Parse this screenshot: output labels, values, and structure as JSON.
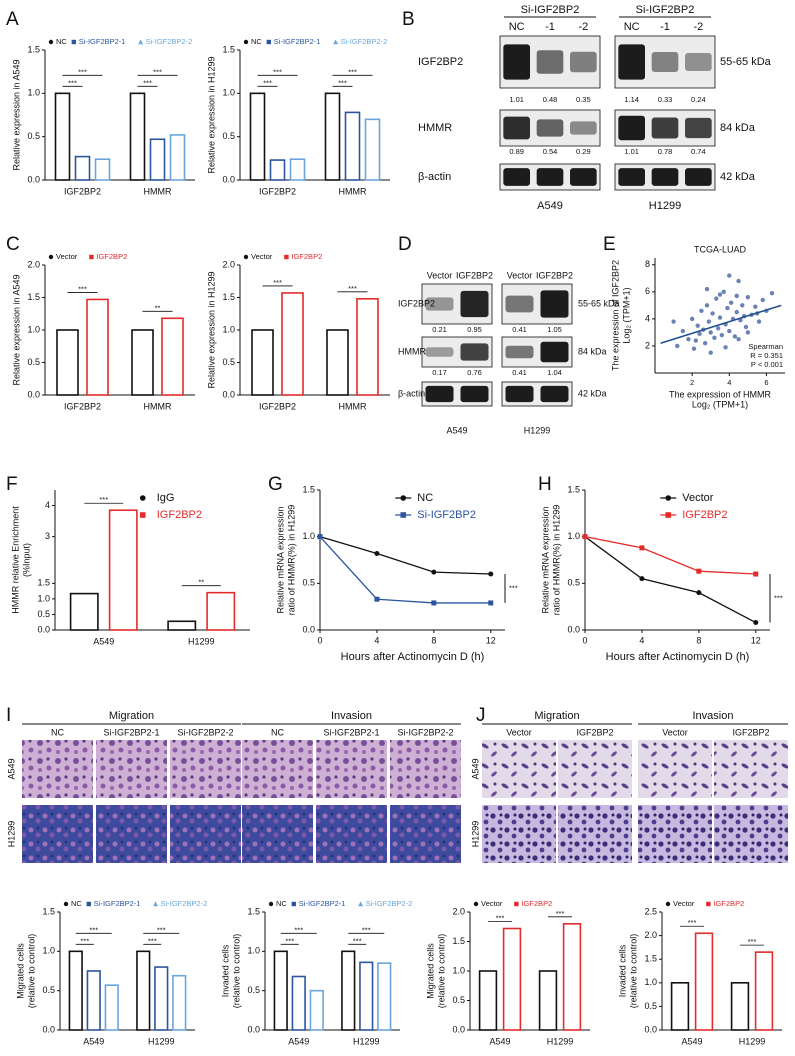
{
  "panel_labels": [
    "A",
    "B",
    "C",
    "D",
    "E",
    "F",
    "G",
    "H",
    "I",
    "J"
  ],
  "chart_data": [
    {
      "type": "bar",
      "ylabel": "Relative expression in A549",
      "categories": [
        "IGF2BP2",
        "HMMR"
      ],
      "series": [
        {
          "name": "NC",
          "color": "#111111",
          "values": [
            1.0,
            1.0
          ]
        },
        {
          "name": "Si-IGF2BP2-1",
          "color": "#2c55a0",
          "values": [
            0.27,
            0.47
          ]
        },
        {
          "name": "Si-IGF2BP2-2",
          "color": "#6aa6dc",
          "values": [
            0.24,
            0.52
          ]
        }
      ],
      "ylim": [
        0,
        1.5
      ],
      "yticks": [
        {
          "value": 0,
          "label": "0.0"
        },
        0.5,
        {
          "value": 1,
          "label": "1.0"
        },
        1.5
      ],
      "significance": [
        "***",
        "***",
        "***",
        "***"
      ],
      "legend": "top"
    },
    {
      "type": "bar",
      "ylabel": "Relative expression in H1299",
      "categories": [
        "IGF2BP2",
        "HMMR"
      ],
      "series": [
        {
          "name": "NC",
          "color": "#111111",
          "values": [
            1.0,
            1.0
          ]
        },
        {
          "name": "Si-IGF2BP2-1",
          "color": "#2c55a0",
          "values": [
            0.23,
            0.78
          ]
        },
        {
          "name": "Si-IGF2BP2-2",
          "color": "#6aa6dc",
          "values": [
            0.24,
            0.7
          ]
        }
      ],
      "ylim": [
        0,
        1.5
      ],
      "yticks": [
        {
          "value": 0,
          "label": "0.0"
        },
        0.5,
        {
          "value": 1,
          "label": "1.0"
        },
        1.5
      ],
      "significance": [
        "***",
        "***",
        "***",
        "***"
      ],
      "legend": "top"
    },
    {
      "type": "bar",
      "ylabel": "Relative expression in A549",
      "categories": [
        "IGF2BP2",
        "HMMR"
      ],
      "series": [
        {
          "name": "Vector",
          "color": "#111111",
          "values": [
            1.0,
            1.0
          ]
        },
        {
          "name": "IGF2BP2",
          "color": "#e32b2b",
          "values": [
            1.47,
            1.18
          ]
        }
      ],
      "ylim": [
        0,
        2
      ],
      "yticks": [
        {
          "value": 0,
          "label": "0.0"
        },
        0.5,
        {
          "value": 1,
          "label": "1.0"
        },
        1.5,
        {
          "value": 2,
          "label": "2.0"
        }
      ],
      "significance": [
        "***",
        "**"
      ],
      "legend": "top"
    },
    {
      "type": "bar",
      "ylabel": "Relative expression in H1299",
      "categories": [
        "IGF2BP2",
        "HMMR"
      ],
      "series": [
        {
          "name": "Vector",
          "color": "#111111",
          "values": [
            1.0,
            1.0
          ]
        },
        {
          "name": "IGF2BP2",
          "color": "#e32b2b",
          "values": [
            1.57,
            1.48
          ]
        }
      ],
      "ylim": [
        0,
        2
      ],
      "yticks": [
        {
          "value": 0,
          "label": "0.0"
        },
        0.5,
        {
          "value": 1,
          "label": "1.0"
        },
        1.5,
        {
          "value": 2,
          "label": "2.0"
        }
      ],
      "significance": [
        "***",
        "***"
      ],
      "legend": "top"
    },
    {
      "type": "scatter",
      "title": "TCGA-LUAD",
      "xlabel": [
        "The expression of HMMR",
        "Log₂ (TPM+1)"
      ],
      "ylabel": [
        "The expression of IGF2BP2",
        "Log₂ (TPM+1)"
      ],
      "color": "#3a5a9a",
      "x": [
        1.2,
        1.5,
        1.8,
        2.0,
        2.1,
        2.3,
        2.4,
        2.5,
        2.6,
        2.7,
        2.8,
        2.9,
        3.0,
        3.1,
        3.2,
        3.3,
        3.4,
        3.5,
        3.6,
        3.7,
        3.8,
        3.9,
        4.0,
        4.1,
        4.2,
        4.3,
        4.4,
        4.5,
        4.6,
        4.7,
        4.8,
        4.9,
        5.0,
        5.2,
        5.4,
        5.6,
        5.8,
        6.0,
        6.3,
        1.0,
        2.2,
        3.0,
        3.5,
        4.0,
        4.5,
        5.0,
        2.8,
        3.8,
        4.4,
        5.5
      ],
      "values": [
        2.0,
        3.1,
        2.5,
        4.0,
        1.8,
        3.5,
        2.9,
        4.6,
        3.2,
        2.2,
        5.0,
        3.8,
        3.0,
        4.4,
        2.6,
        5.5,
        3.3,
        4.1,
        2.8,
        6.0,
        3.6,
        4.8,
        3.1,
        5.2,
        4.0,
        2.7,
        4.5,
        6.8,
        3.9,
        5.0,
        4.2,
        3.4,
        5.6,
        4.3,
        4.9,
        3.8,
        5.4,
        4.6,
        5.9,
        3.8,
        2.4,
        1.5,
        5.8,
        7.2,
        2.5,
        3.0,
        6.2,
        1.9,
        5.7,
        4.4
      ],
      "trendline": {
        "x": [
          0.3,
          6.8
        ],
        "y": [
          2.2,
          5.0
        ]
      },
      "xlim": [
        0,
        7
      ],
      "ylim": [
        0,
        8.5
      ],
      "xticks": [
        2,
        4,
        6
      ],
      "yticks": [
        2,
        4,
        6,
        8
      ],
      "annotations": [
        "Spearman",
        "R = 0.351",
        "P < 0.001"
      ]
    },
    {
      "type": "bar",
      "ylabel": [
        "HMMR relative Enrichment",
        "(%Input)"
      ],
      "categories": [
        "A549",
        "H1299"
      ],
      "series": [
        {
          "name": "IgG",
          "color": "#111111",
          "values": [
            1.17,
            0.28
          ]
        },
        {
          "name": "IGF2BP2",
          "color": "#e32b2b",
          "values": [
            3.85,
            1.2
          ]
        }
      ],
      "ylim": [
        0,
        4.5
      ],
      "yticks": [
        {
          "value": 0,
          "label": "0.0"
        },
        0.5,
        {
          "value": 1,
          "label": "1.0"
        },
        1.5,
        3,
        4
      ],
      "significance": [
        "***",
        "**"
      ],
      "legend": "upper right"
    },
    {
      "type": "line",
      "xlabel": "Hours after Actinomycin D (h)",
      "ylabel": [
        "Relative mRNA expression",
        "ratio of HMMR(%) in H1299"
      ],
      "x": [
        0,
        4,
        8,
        12
      ],
      "series": [
        {
          "name": "NC",
          "color": "#111111",
          "values": [
            1.0,
            0.82,
            0.62,
            0.6
          ]
        },
        {
          "name": "Si-IGF2BP2",
          "color": "#2c55a0",
          "values": [
            1.0,
            0.33,
            0.29,
            0.29
          ]
        }
      ],
      "xlim": [
        0,
        13
      ],
      "xticks": [
        0,
        4,
        8,
        12
      ],
      "ylim": [
        0,
        1.5
      ],
      "yticks": [
        {
          "value": 0,
          "label": "0.0"
        },
        0.5,
        {
          "value": 1,
          "label": "1.0"
        },
        1.5
      ],
      "significance": [
        "***"
      ],
      "legend": "upper right"
    },
    {
      "type": "line",
      "xlabel": "Hours after Actinomycin D (h)",
      "ylabel": [
        "Relative mRNA expression",
        "ratio of HMMR(%) in H1299"
      ],
      "x": [
        0,
        4,
        8,
        12
      ],
      "series": [
        {
          "name": "Vector",
          "color": "#111111",
          "values": [
            1.0,
            0.55,
            0.4,
            0.08
          ]
        },
        {
          "name": "IGF2BP2",
          "color": "#e32b2b",
          "values": [
            1.0,
            0.88,
            0.63,
            0.6
          ]
        }
      ],
      "xlim": [
        0,
        13
      ],
      "xticks": [
        0,
        4,
        8,
        12
      ],
      "ylim": [
        0,
        1.5
      ],
      "yticks": [
        {
          "value": 0,
          "label": "0.0"
        },
        0.5,
        {
          "value": 1,
          "label": "1.0"
        },
        1.5
      ],
      "significance": [
        "***"
      ],
      "legend": "upper right"
    },
    {
      "type": "bar",
      "ylabel": [
        "Migrated cells",
        "(relative to control)"
      ],
      "categories": [
        "A549",
        "H1299"
      ],
      "series": [
        {
          "name": "NC",
          "color": "#111111",
          "values": [
            1.0,
            1.0
          ]
        },
        {
          "name": "Si-IGF2BP2-1",
          "color": "#2c55a0",
          "values": [
            0.75,
            0.8
          ]
        },
        {
          "name": "Si-IGF2BP2-2",
          "color": "#6aa6dc",
          "values": [
            0.57,
            0.69
          ]
        }
      ],
      "ylim": [
        0,
        1.5
      ],
      "yticks": [
        {
          "value": 0,
          "label": "0.0"
        },
        0.5,
        {
          "value": 1,
          "label": "1.0"
        },
        1.5
      ],
      "significance": [
        "***",
        "***",
        "***",
        "***"
      ],
      "legend": "top"
    },
    {
      "type": "bar",
      "ylabel": [
        "Invaded cells",
        "(relative to control)"
      ],
      "categories": [
        "A549",
        "H1299"
      ],
      "series": [
        {
          "name": "NC",
          "color": "#111111",
          "values": [
            1.0,
            1.0
          ]
        },
        {
          "name": "Si-IGF2BP2-1",
          "color": "#2c55a0",
          "values": [
            0.68,
            0.86
          ]
        },
        {
          "name": "Si-IGF2BP2-2",
          "color": "#6aa6dc",
          "values": [
            0.5,
            0.85
          ]
        }
      ],
      "ylim": [
        0,
        1.5
      ],
      "yticks": [
        {
          "value": 0,
          "label": "0.0"
        },
        0.5,
        {
          "value": 1,
          "label": "1.0"
        },
        1.5
      ],
      "significance": [
        "***",
        "***",
        "***",
        "***"
      ],
      "legend": "top"
    },
    {
      "type": "bar",
      "ylabel": [
        "Migrated cells",
        "(relative to control)"
      ],
      "categories": [
        "A549",
        "H1299"
      ],
      "series": [
        {
          "name": "Vector",
          "color": "#111111",
          "values": [
            1.0,
            1.0
          ]
        },
        {
          "name": "IGF2BP2",
          "color": "#e32b2b",
          "values": [
            1.72,
            1.8
          ]
        }
      ],
      "ylim": [
        0,
        2
      ],
      "yticks": [
        {
          "value": 0,
          "label": "0.0"
        },
        0.5,
        {
          "value": 1,
          "label": "1.0"
        },
        1.5,
        {
          "value": 2,
          "label": "2.0"
        }
      ],
      "significance": [
        "***",
        "***"
      ],
      "legend": "top"
    },
    {
      "type": "bar",
      "ylabel": [
        "Invaded cells",
        "(relative to control)"
      ],
      "categories": [
        "A549",
        "H1299"
      ],
      "series": [
        {
          "name": "Vector",
          "color": "#111111",
          "values": [
            1.0,
            1.0
          ]
        },
        {
          "name": "IGF2BP2",
          "color": "#e32b2b",
          "values": [
            2.05,
            1.65
          ]
        }
      ],
      "ylim": [
        0,
        2.5
      ],
      "yticks": [
        {
          "value": 0,
          "label": "0.0"
        },
        0.5,
        {
          "value": 1,
          "label": "1.0"
        },
        1.5,
        {
          "value": 2,
          "label": "2.0"
        },
        2.5
      ],
      "significance": [
        "***",
        "***"
      ],
      "legend": "top"
    }
  ],
  "blots": [
    {
      "groups": [
        {
          "header": "Si-IGF2BP2",
          "lanes": [
            "NC",
            "-1",
            "-2"
          ],
          "cell": "A549"
        },
        {
          "header": "Si-IGF2BP2",
          "lanes": [
            "NC",
            "-1",
            "-2"
          ],
          "cell": "H1299"
        }
      ],
      "rows": [
        {
          "name": "IGF2BP2",
          "size": "55-65 kDa",
          "quant": [
            [
              1.01,
              0.48,
              0.35
            ],
            [
              1.14,
              0.33,
              0.24
            ]
          ]
        },
        {
          "name": "HMMR",
          "size": "84 kDa",
          "quant": [
            [
              0.89,
              0.54,
              0.29
            ],
            [
              1.01,
              0.78,
              0.74
            ]
          ]
        },
        {
          "name": "β-actin",
          "size": "42 kDa"
        }
      ]
    },
    {
      "groups": [
        {
          "lanes": [
            "Vector",
            "IGF2BP2"
          ],
          "cell": "A549"
        },
        {
          "lanes": [
            "Vector",
            "IGF2BP2"
          ],
          "cell": "H1299"
        }
      ],
      "rows": [
        {
          "name": "IGF2BP2",
          "size": "55-65 kDa",
          "quant": [
            [
              0.21,
              0.95
            ],
            [
              0.41,
              1.05
            ]
          ]
        },
        {
          "name": "HMMR",
          "size": "84 kDa",
          "quant": [
            [
              0.17,
              0.76
            ],
            [
              0.41,
              1.04
            ]
          ]
        },
        {
          "name": "β-actin",
          "size": "42 kDa"
        }
      ]
    }
  ],
  "micrographs": [
    {
      "sections": [
        "Migration",
        "Invasion"
      ],
      "columns": [
        "NC",
        "Si-IGF2BP2-1",
        "Si-IGF2BP2-2"
      ],
      "rows": [
        "A549",
        "H1299"
      ]
    },
    {
      "sections": [
        "Migration",
        "Invasion"
      ],
      "columns": [
        "Vector",
        "IGF2BP2"
      ],
      "rows": [
        "A549",
        "H1299"
      ]
    }
  ]
}
